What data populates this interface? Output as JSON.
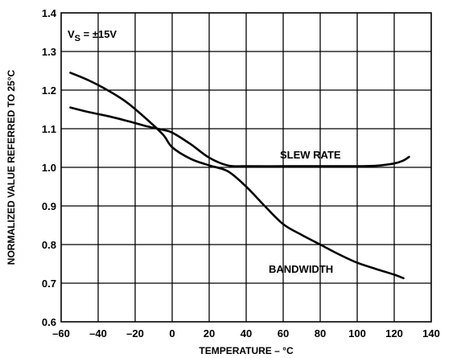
{
  "chart_data": {
    "type": "line",
    "xlabel": "TEMPERATURE – °C",
    "ylabel": "NORMALIZED VALUE REFERRED TO 25°C",
    "xlim": [
      -60,
      140
    ],
    "ylim": [
      0.6,
      1.4
    ],
    "x_ticks": [
      "–60",
      "–40",
      "–20",
      "0",
      "20",
      "40",
      "60",
      "80",
      "100",
      "120",
      "140"
    ],
    "y_ticks": [
      "0.6",
      "0.7",
      "0.8",
      "0.9",
      "1.0",
      "1.1",
      "1.2",
      "1.3",
      "1.4"
    ],
    "grid": true,
    "condition": {
      "prefix": "V",
      "subscript": "S",
      "suffix": " = ±15V"
    },
    "series": [
      {
        "name": "SLEW RATE",
        "x": [
          -55,
          -45,
          -35,
          -25,
          -15,
          -5,
          0,
          10,
          20,
          30,
          40,
          60,
          80,
          100,
          110,
          120,
          125,
          128
        ],
        "y": [
          1.155,
          1.143,
          1.133,
          1.121,
          1.108,
          1.097,
          1.09,
          1.06,
          1.025,
          1.005,
          1.003,
          1.003,
          1.003,
          1.003,
          1.004,
          1.01,
          1.018,
          1.027
        ]
      },
      {
        "name": "BANDWIDTH",
        "x": [
          -55,
          -45,
          -35,
          -25,
          -15,
          -5,
          0,
          10,
          20,
          30,
          40,
          50,
          60,
          70,
          80,
          90,
          100,
          110,
          120,
          125
        ],
        "y": [
          1.245,
          1.225,
          1.2,
          1.17,
          1.13,
          1.085,
          1.052,
          1.022,
          1.005,
          0.99,
          0.95,
          0.9,
          0.853,
          0.825,
          0.8,
          0.775,
          0.753,
          0.737,
          0.722,
          0.713
        ]
      }
    ]
  }
}
